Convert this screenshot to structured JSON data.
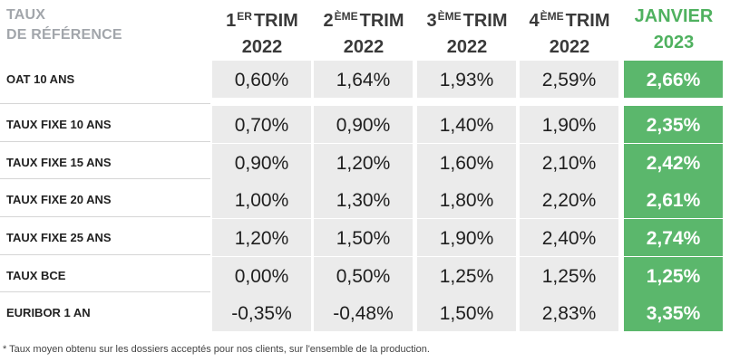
{
  "table": {
    "corner_line1": "TAUX",
    "corner_line2": "DE RÉFÉRENCE",
    "columns": [
      {
        "num": "1",
        "sup": "ER",
        "word": "TRIM",
        "year": "2022"
      },
      {
        "num": "2",
        "sup": "ÈME",
        "word": "TRIM",
        "year": "2022"
      },
      {
        "num": "3",
        "sup": "ÈME",
        "word": "TRIM",
        "year": "2022"
      },
      {
        "num": "4",
        "sup": "ÈME",
        "word": "TRIM",
        "year": "2022"
      },
      {
        "num": "JANVIER",
        "sup": "",
        "word": "",
        "year": "2023"
      }
    ],
    "rows": [
      {
        "label": "OAT 10 ANS",
        "values": [
          "0,60%",
          "1,64%",
          "1,93%",
          "2,59%",
          "2,66%"
        ]
      },
      {
        "label": "TAUX FIXE 10 ANS",
        "values": [
          "0,70%",
          "0,90%",
          "1,40%",
          "1,90%",
          "2,35%"
        ]
      },
      {
        "label": "TAUX FIXE 15 ANS",
        "values": [
          "0,90%",
          "1,20%",
          "1,60%",
          "2,10%",
          "2,42%"
        ]
      },
      {
        "label": "TAUX FIXE 20 ANS",
        "values": [
          "1,00%",
          "1,30%",
          "1,80%",
          "2,20%",
          "2,61%"
        ]
      },
      {
        "label": "TAUX FIXE 25 ANS",
        "values": [
          "1,20%",
          "1,50%",
          "1,90%",
          "2,40%",
          "2,74%"
        ]
      },
      {
        "label": "TAUX BCE",
        "values": [
          "0,00%",
          "0,50%",
          "1,25%",
          "1,25%",
          "1,25%"
        ]
      },
      {
        "label": "EURIBOR 1 AN",
        "values": [
          "-0,35%",
          "-0,48%",
          "1,50%",
          "2,83%",
          "3,35%"
        ]
      }
    ],
    "highlight_color": "#5bb76c",
    "cell_color": "#ebebeb"
  },
  "chart_data": {
    "type": "table",
    "title": "",
    "columns": [
      "1ER TRIM 2022",
      "2ÈME TRIM 2022",
      "3ÈME TRIM 2022",
      "4ÈME TRIM 2022",
      "JANVIER 2023"
    ],
    "rows": [
      {
        "name": "OAT 10 ANS",
        "values": [
          0.6,
          1.64,
          1.93,
          2.59,
          2.66
        ]
      },
      {
        "name": "TAUX FIXE 10 ANS",
        "values": [
          0.7,
          0.9,
          1.4,
          1.9,
          2.35
        ]
      },
      {
        "name": "TAUX FIXE 15 ANS",
        "values": [
          0.9,
          1.2,
          1.6,
          2.1,
          2.42
        ]
      },
      {
        "name": "TAUX FIXE 20 ANS",
        "values": [
          1.0,
          1.3,
          1.8,
          2.2,
          2.61
        ]
      },
      {
        "name": "TAUX FIXE 25 ANS",
        "values": [
          1.2,
          1.5,
          1.9,
          2.4,
          2.74
        ]
      },
      {
        "name": "TAUX BCE",
        "values": [
          0.0,
          0.5,
          1.25,
          1.25,
          1.25
        ]
      },
      {
        "name": "EURIBOR 1 AN",
        "values": [
          -0.35,
          -0.48,
          1.5,
          2.83,
          3.35
        ]
      }
    ],
    "unit": "%"
  },
  "footnote": "* Taux moyen obtenu sur les dossiers acceptés pour nos clients, sur l'ensemble de la production."
}
